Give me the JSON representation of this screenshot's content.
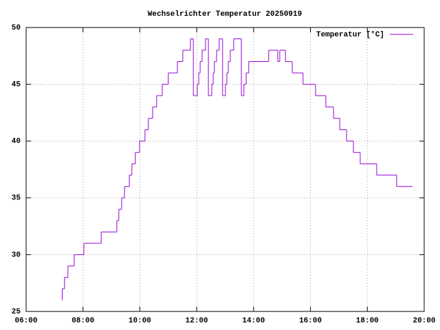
{
  "chart_data": {
    "type": "line",
    "style": "steps",
    "title": "Wechselrichter Temperatur 20250919",
    "x": [
      7.26,
      7.27,
      7.35,
      7.47,
      7.69,
      8.03,
      8.64,
      9.19,
      9.26,
      9.36,
      9.46,
      9.63,
      9.72,
      9.84,
      9.99,
      10.18,
      10.3,
      10.45,
      10.59,
      10.79,
      11.0,
      11.32,
      11.51,
      11.78,
      11.88,
      12.02,
      12.07,
      12.12,
      12.19,
      12.31,
      12.41,
      12.53,
      12.58,
      12.62,
      12.7,
      12.79,
      12.91,
      13.01,
      13.06,
      13.11,
      13.18,
      13.3,
      13.57,
      13.66,
      13.74,
      13.83,
      14.53,
      14.85,
      14.92,
      15.12,
      15.36,
      15.74,
      16.18,
      16.54,
      16.81,
      17.03,
      17.27,
      17.51,
      17.75,
      18.33,
      19.03,
      19.59
    ],
    "series": [
      {
        "name": "Temperatur [°C]",
        "color": "#9400d3",
        "values": [
          26,
          27,
          28,
          29,
          30,
          31,
          32,
          33,
          34,
          35,
          36,
          37,
          38,
          39,
          40,
          41,
          42,
          43,
          44,
          45,
          46,
          47,
          48,
          49,
          44,
          45,
          46,
          47,
          48,
          49,
          44,
          45,
          46,
          47,
          48,
          49,
          44,
          45,
          46,
          47,
          48,
          49,
          44,
          45,
          46,
          47,
          48,
          47,
          48,
          47,
          46,
          45,
          44,
          43,
          42,
          41,
          40,
          39,
          38,
          37,
          36,
          36
        ]
      }
    ],
    "xlim": [
      6,
      20
    ],
    "xticks": [
      {
        "value": 6,
        "label": "06:00"
      },
      {
        "value": 8,
        "label": "08:00"
      },
      {
        "value": 10,
        "label": "10:00"
      },
      {
        "value": 12,
        "label": "12:00"
      },
      {
        "value": 14,
        "label": "14:00"
      },
      {
        "value": 16,
        "label": "16:00"
      },
      {
        "value": 18,
        "label": "18:00"
      },
      {
        "value": 20,
        "label": "20:00"
      }
    ],
    "ylim": [
      25,
      50
    ],
    "yticks": [
      25,
      30,
      35,
      40,
      45,
      50
    ],
    "grid": true,
    "legend": "top-right"
  }
}
